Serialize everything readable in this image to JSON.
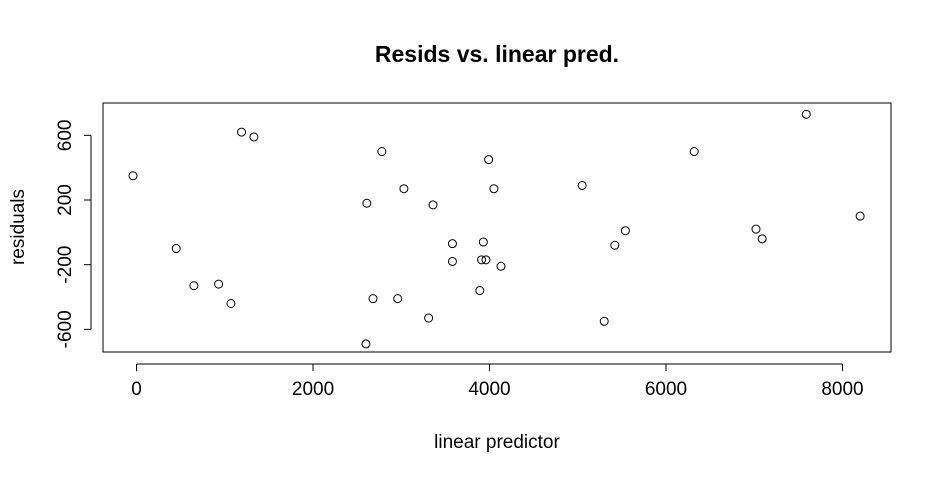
{
  "chart_data": {
    "type": "scatter",
    "title": "Resids vs. linear pred.",
    "xlabel": "linear predictor",
    "ylabel": "residuals",
    "xlim": [
      -380,
      8550
    ],
    "ylim": [
      -740,
      800
    ],
    "xticks": [
      0,
      2000,
      4000,
      6000,
      8000
    ],
    "yticks": [
      -600,
      -200,
      200,
      600
    ],
    "xtick_labels": [
      "0",
      "2000",
      "4000",
      "6000",
      "8000"
    ],
    "ytick_labels": [
      "-600",
      "-200",
      "200",
      "600"
    ],
    "grid": false,
    "legend": "none",
    "points": [
      {
        "x": -40,
        "y": 350
      },
      {
        "x": 450,
        "y": -100
      },
      {
        "x": 650,
        "y": -330
      },
      {
        "x": 930,
        "y": -320
      },
      {
        "x": 1070,
        "y": -440
      },
      {
        "x": 1190,
        "y": 620
      },
      {
        "x": 1330,
        "y": 590
      },
      {
        "x": 2610,
        "y": 180
      },
      {
        "x": 2600,
        "y": -690
      },
      {
        "x": 2680,
        "y": -410
      },
      {
        "x": 2780,
        "y": 500
      },
      {
        "x": 2960,
        "y": -410
      },
      {
        "x": 3030,
        "y": 270
      },
      {
        "x": 3310,
        "y": -530
      },
      {
        "x": 3360,
        "y": 170
      },
      {
        "x": 3580,
        "y": -70
      },
      {
        "x": 3580,
        "y": -180
      },
      {
        "x": 3890,
        "y": -360
      },
      {
        "x": 3910,
        "y": -170
      },
      {
        "x": 3930,
        "y": -60
      },
      {
        "x": 3960,
        "y": -170
      },
      {
        "x": 3990,
        "y": 450
      },
      {
        "x": 4050,
        "y": 270
      },
      {
        "x": 4130,
        "y": -210
      },
      {
        "x": 5050,
        "y": 290
      },
      {
        "x": 5300,
        "y": -550
      },
      {
        "x": 5420,
        "y": -80
      },
      {
        "x": 5540,
        "y": 10
      },
      {
        "x": 6320,
        "y": 500
      },
      {
        "x": 7020,
        "y": 20
      },
      {
        "x": 7090,
        "y": -40
      },
      {
        "x": 7590,
        "y": 730
      },
      {
        "x": 8200,
        "y": 100
      }
    ]
  }
}
